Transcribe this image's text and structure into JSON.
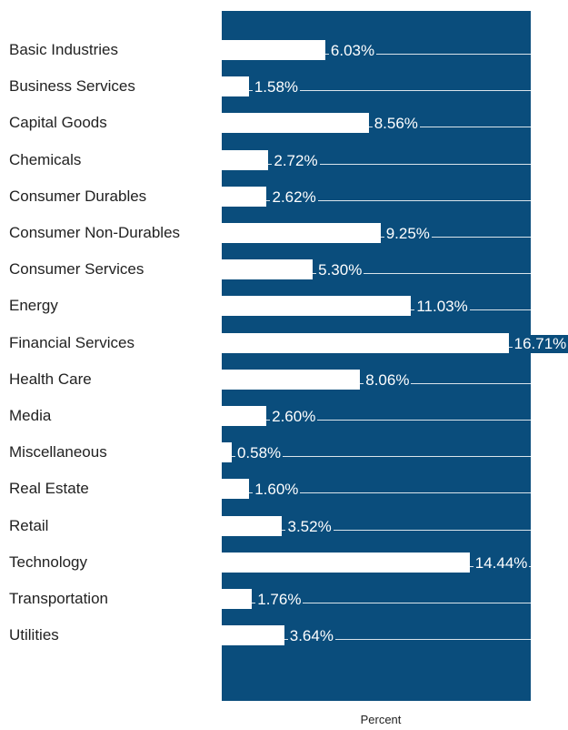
{
  "chart_data": {
    "type": "bar",
    "orientation": "horizontal",
    "x_label": "Percent",
    "categories": [
      "Basic Industries",
      "Business Services",
      "Capital Goods",
      "Chemicals",
      "Consumer Durables",
      "Consumer Non-Durables",
      "Consumer Services",
      "Energy",
      "Financial Services",
      "Health Care",
      "Media",
      "Miscellaneous",
      "Real Estate",
      "Retail",
      "Technology",
      "Transportation",
      "Utilities"
    ],
    "values": [
      6.03,
      1.58,
      8.56,
      2.72,
      2.62,
      9.25,
      5.3,
      11.03,
      16.71,
      8.06,
      2.6,
      0.58,
      1.6,
      3.52,
      14.44,
      1.76,
      3.64
    ],
    "value_labels": [
      "6.03%",
      "1.58%",
      "8.56%",
      "2.72%",
      "2.62%",
      "9.25%",
      "5.30%",
      "11.03%",
      "16.71%",
      "8.06%",
      "2.60%",
      "0.58%",
      "1.60%",
      "3.52%",
      "14.44%",
      "1.76%",
      "3.64%"
    ],
    "color": "#ffffff",
    "xlim": [
      0,
      18
    ]
  }
}
